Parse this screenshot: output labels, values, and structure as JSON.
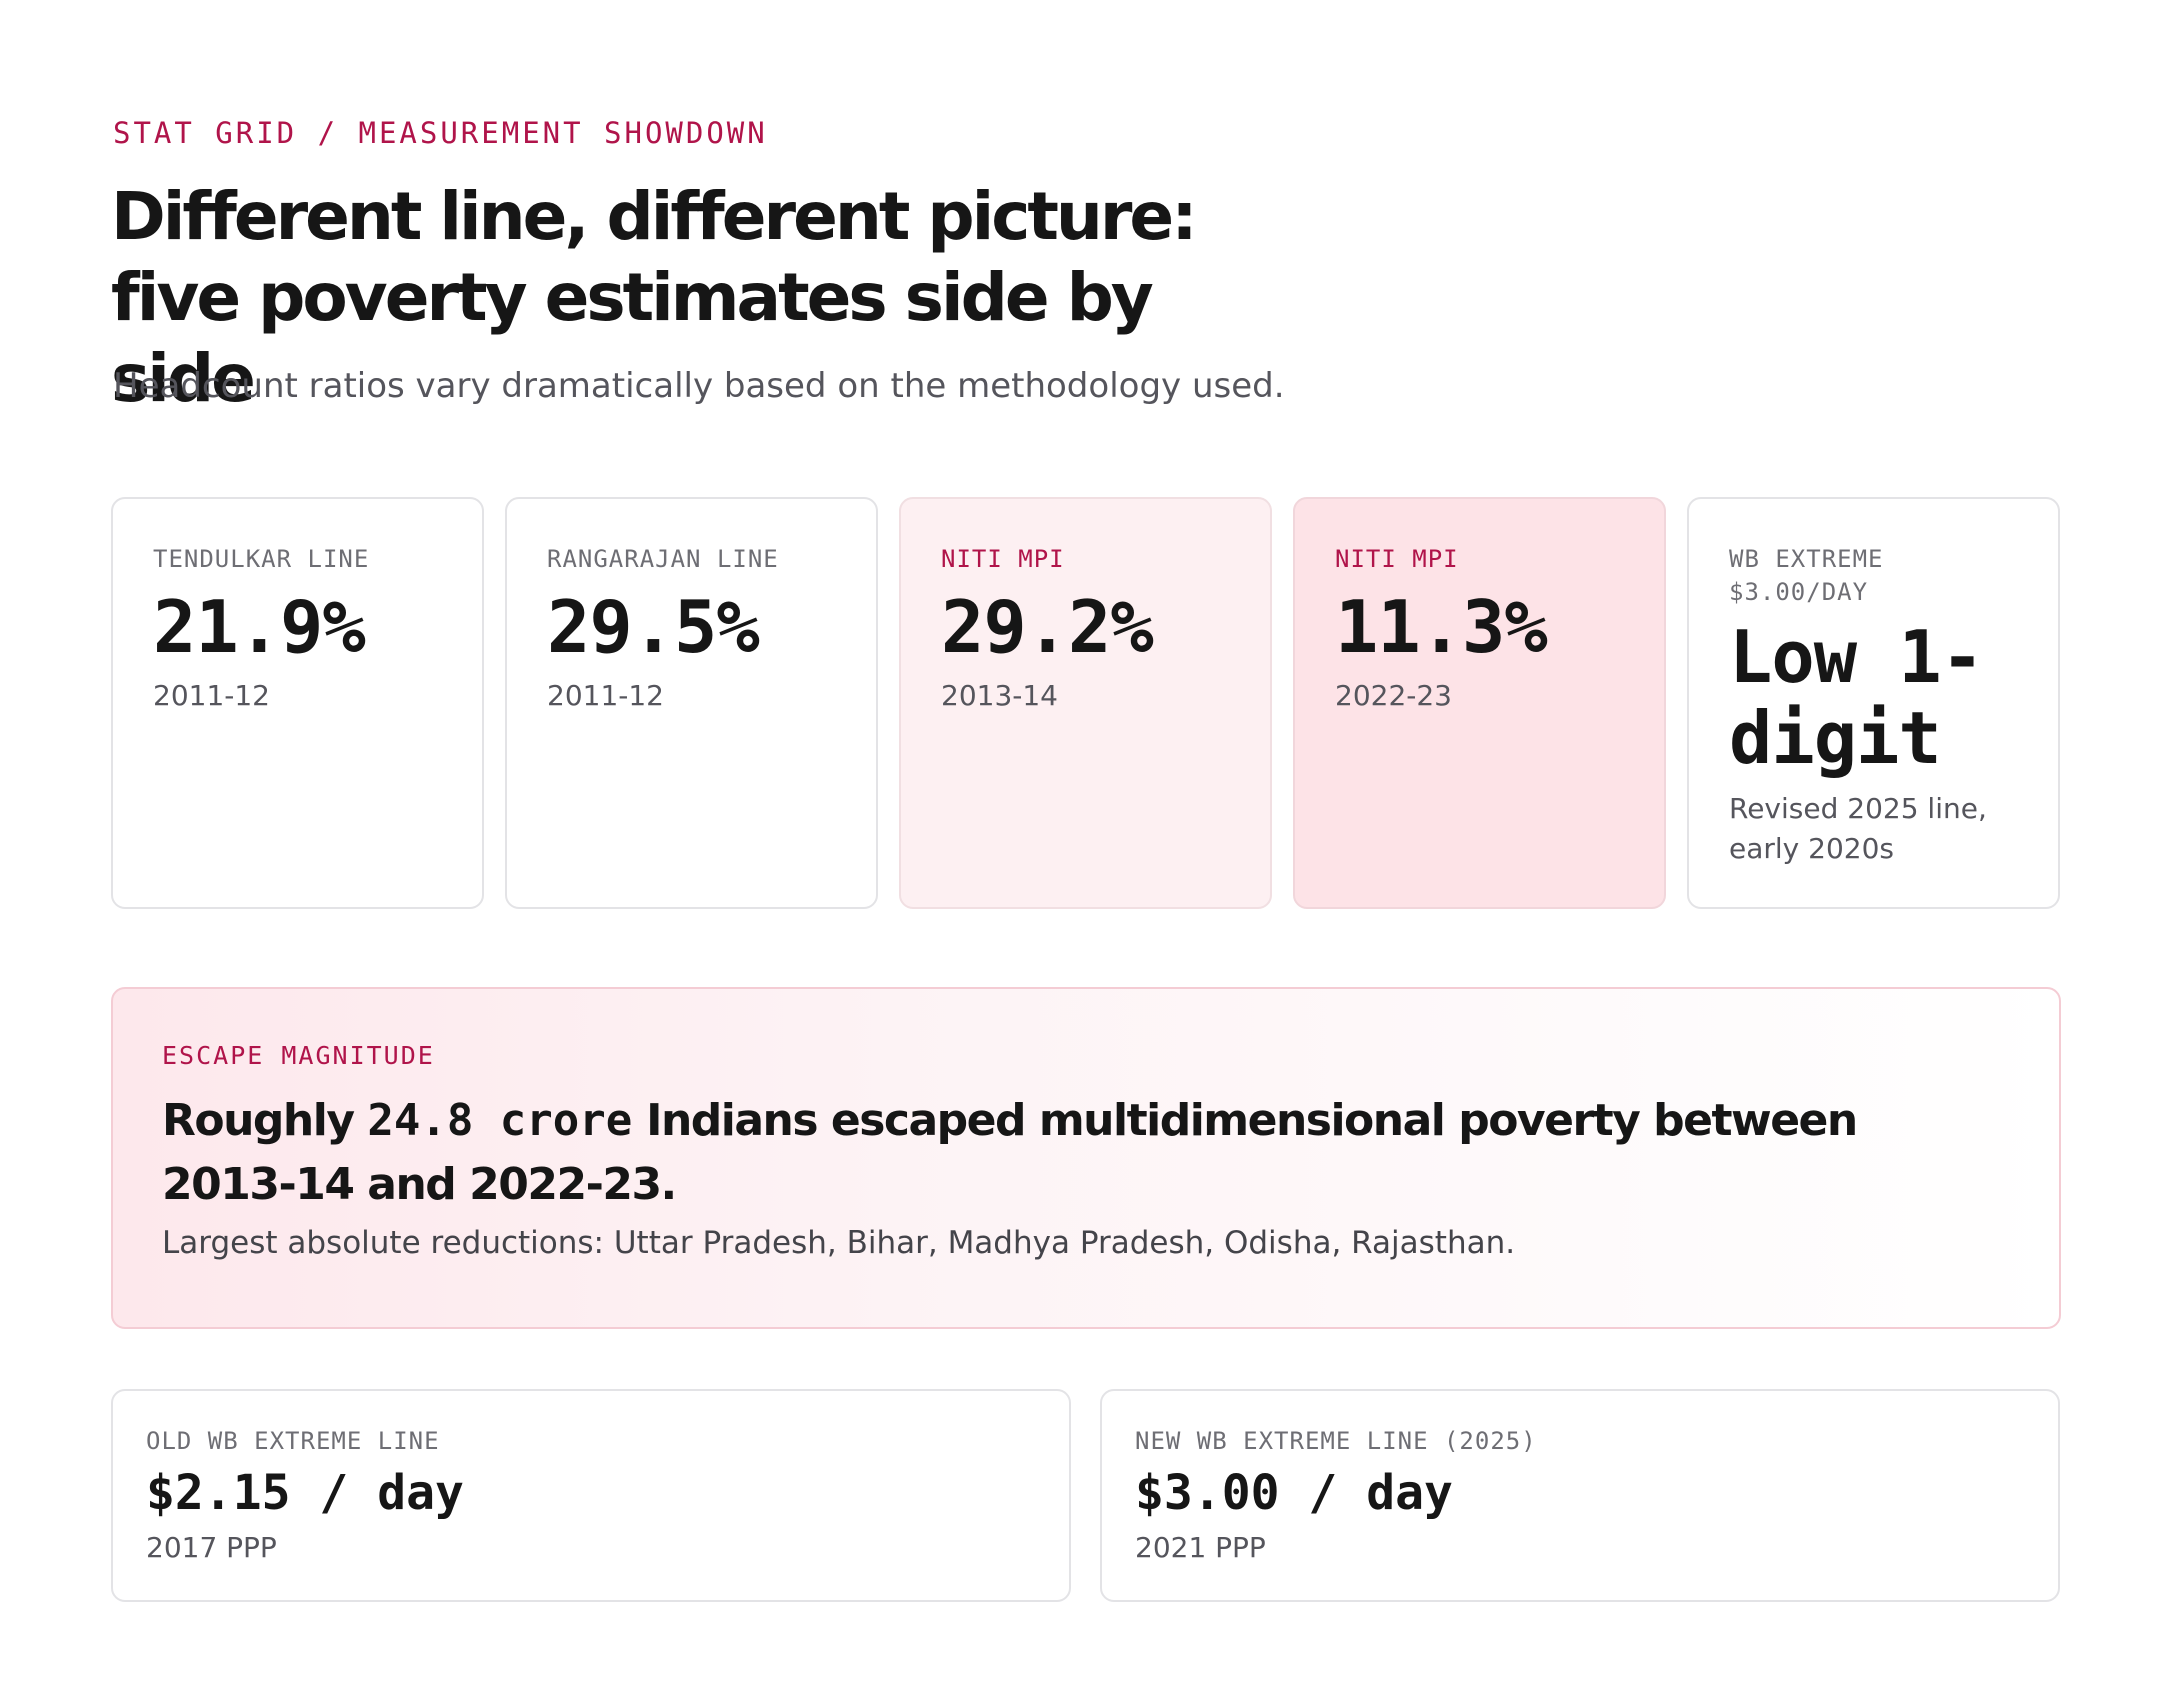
{
  "header": {
    "eyebrow": "STAT GRID / MEASUREMENT SHOWDOWN",
    "title": "Different line, different picture: five poverty estimates side by side",
    "subtitle": "Headcount ratios vary dramatically based on the methodology used."
  },
  "stats": [
    {
      "label": "TENDULKAR LINE",
      "value": "21.9%",
      "sub": "2011-12"
    },
    {
      "label": "RANGARAJAN LINE",
      "value": "29.5%",
      "sub": "2011-12"
    },
    {
      "label": "NITI MPI",
      "value": "29.2%",
      "sub": "2013-14"
    },
    {
      "label": "NITI MPI",
      "value": "11.3%",
      "sub": "2022-23"
    },
    {
      "label": "WB EXTREME\n$3.00/DAY",
      "value": "Low 1-digit",
      "sub": "Revised 2025 line, early 2020s"
    }
  ],
  "escape": {
    "label": "ESCAPE MAGNITUDE",
    "headline_prefix": "Roughly ",
    "headline_figure": "24.8 crore",
    "headline_suffix": " Indians escaped multidimensional poverty between 2013-14 and 2022-23.",
    "detail": "Largest absolute reductions: Uttar Pradesh, Bihar, Madhya Pradesh, Odisha, Rajasthan."
  },
  "lines": [
    {
      "label": "OLD WB EXTREME LINE",
      "value": "$2.15 / day",
      "sub": "2017 PPP"
    },
    {
      "label": "NEW WB EXTREME LINE (2025)",
      "value": "$3.00 / day",
      "sub": "2021 PPP"
    }
  ],
  "colors": {
    "accent": "#b0144a",
    "pink_light": "#fdf0f2",
    "pink_medium": "#fde3e7",
    "border": "#e3e3e6",
    "text": "#161616",
    "muted": "#55555c"
  }
}
